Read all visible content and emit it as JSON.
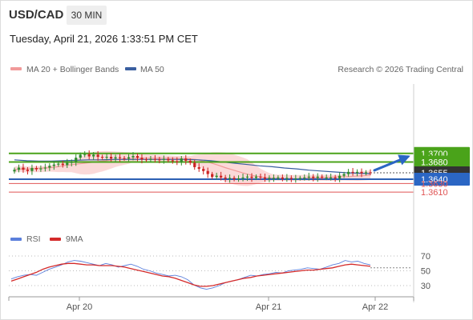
{
  "header": {
    "symbol": "USD/CAD",
    "timeframe": "30 MIN",
    "timestamp": "Tuesday, April 21, 2026 1:33:51 PM CET"
  },
  "legend": {
    "ma20": "MA 20 + Bollinger Bands",
    "ma50": "MA 50",
    "credit": "Research © 2026 Trading Central",
    "rsi": "RSI",
    "rsi_ma": "9MA"
  },
  "colors": {
    "resistance": "#4aa31a",
    "support": "#2b5fb4",
    "target": "#2b66c4",
    "current_box": "#333333",
    "weak_support": "#e05555",
    "bollinger_fill": "#fbd5d5",
    "ma20": "#f19a9a",
    "ma50": "#3a5fa0",
    "candle_up": "#2e8b2e",
    "candle_down": "#cc2222",
    "rsi": "#5b7fdc",
    "rsi_ma": "#d42a2a"
  },
  "chart_data": [
    {
      "type": "candlestick",
      "title": "USD/CAD 30 MIN",
      "x_labels": [
        "Apr 20",
        "Apr 21",
        "Apr 22"
      ],
      "ylim": [
        1.36,
        1.372
      ],
      "current_price": "1.3655",
      "levels": [
        {
          "value": 1.37,
          "label": "1.3700",
          "kind": "target"
        },
        {
          "value": 1.368,
          "label": "1.3680",
          "kind": "resistance"
        },
        {
          "value": 1.3655,
          "label": "1.3655",
          "kind": "current"
        },
        {
          "value": 1.364,
          "label": "1.3640",
          "kind": "pivot"
        },
        {
          "value": 1.363,
          "label": "1.3630",
          "kind": "support"
        },
        {
          "value": 1.361,
          "label": "1.3610",
          "kind": "support"
        }
      ],
      "closes": [
        1.3662,
        1.3667,
        1.3662,
        1.3659,
        1.3666,
        1.3663,
        1.3665,
        1.3667,
        1.3671,
        1.3674,
        1.3676,
        1.3673,
        1.3678,
        1.368,
        1.369,
        1.3697,
        1.3698,
        1.3693,
        1.3697,
        1.3692,
        1.369,
        1.3692,
        1.3688,
        1.3691,
        1.3689,
        1.3688,
        1.3691,
        1.3694,
        1.369,
        1.3686,
        1.3685,
        1.3687,
        1.3686,
        1.3685,
        1.3687,
        1.3684,
        1.3682,
        1.368,
        1.3688,
        1.3683,
        1.3678,
        1.3668,
        1.3664,
        1.3659,
        1.3652,
        1.3645,
        1.3648,
        1.3644,
        1.3641,
        1.3643,
        1.364,
        1.3642,
        1.3644,
        1.3646,
        1.3643,
        1.3646,
        1.3644,
        1.3641,
        1.3643,
        1.3643,
        1.3644,
        1.3641,
        1.3643,
        1.3641,
        1.3642,
        1.3643,
        1.3644,
        1.3646,
        1.3643,
        1.3646,
        1.3644,
        1.3644,
        1.3644,
        1.3642,
        1.3648,
        1.3652,
        1.3657,
        1.3655,
        1.3657,
        1.3654,
        1.3656,
        1.3655
      ],
      "ma20": [
        1.3662,
        1.3664,
        1.3664,
        1.3665,
        1.3666,
        1.3667,
        1.3669,
        1.3672,
        1.3674,
        1.3676,
        1.3678,
        1.368,
        1.3682,
        1.3684,
        1.3686,
        1.3687,
        1.3688,
        1.3689,
        1.3689,
        1.3689,
        1.3689,
        1.3689,
        1.3689,
        1.3688,
        1.3688,
        1.3686,
        1.3682,
        1.3678,
        1.3673,
        1.3667,
        1.3662,
        1.3657,
        1.3652,
        1.3648,
        1.3645,
        1.3643,
        1.3642,
        1.3641,
        1.3641,
        1.3641,
        1.3642,
        1.3643,
        1.3643,
        1.3644,
        1.3645,
        1.3646,
        1.3646,
        1.3647,
        1.3648,
        1.365
      ],
      "ma50": [
        1.3685,
        1.3683,
        1.3682,
        1.3682,
        1.3683,
        1.3684,
        1.3685,
        1.3685,
        1.3686,
        1.3686,
        1.3686,
        1.3686,
        1.3686,
        1.3686,
        1.3686,
        1.3685,
        1.3683,
        1.368,
        1.3677,
        1.3674,
        1.3671,
        1.3669,
        1.3666,
        1.3664,
        1.3661,
        1.3659,
        1.3657,
        1.3655,
        1.3654,
        1.3653
      ]
    },
    {
      "type": "line",
      "title": "RSI",
      "y_ticks": [
        70,
        50,
        30
      ],
      "ylim": [
        20,
        80
      ],
      "series": [
        {
          "name": "RSI",
          "values": [
            39,
            42,
            44,
            45,
            44,
            48,
            52,
            55,
            58,
            62,
            64,
            63,
            61,
            59,
            57,
            60,
            58,
            55,
            57,
            59,
            56,
            52,
            50,
            47,
            45,
            43,
            44,
            42,
            38,
            31,
            27,
            25,
            27,
            30,
            34,
            36,
            38,
            41,
            44,
            43,
            45,
            46,
            48,
            47,
            50,
            51,
            52,
            54,
            53,
            52,
            55,
            58,
            60,
            64,
            62,
            63,
            60,
            58
          ]
        },
        {
          "name": "9MA",
          "values": [
            36,
            39,
            42,
            45,
            48,
            52,
            55,
            57,
            59,
            60,
            60,
            59,
            58,
            58,
            57,
            57,
            57,
            56,
            55,
            53,
            51,
            49,
            47,
            45,
            43,
            42,
            40,
            37,
            34,
            31,
            29,
            29,
            30,
            32,
            34,
            36,
            38,
            40,
            41,
            43,
            44,
            45,
            46,
            47,
            48,
            49,
            50,
            51,
            51,
            52,
            53,
            54,
            56,
            58,
            59,
            58,
            57,
            56
          ]
        }
      ]
    }
  ]
}
